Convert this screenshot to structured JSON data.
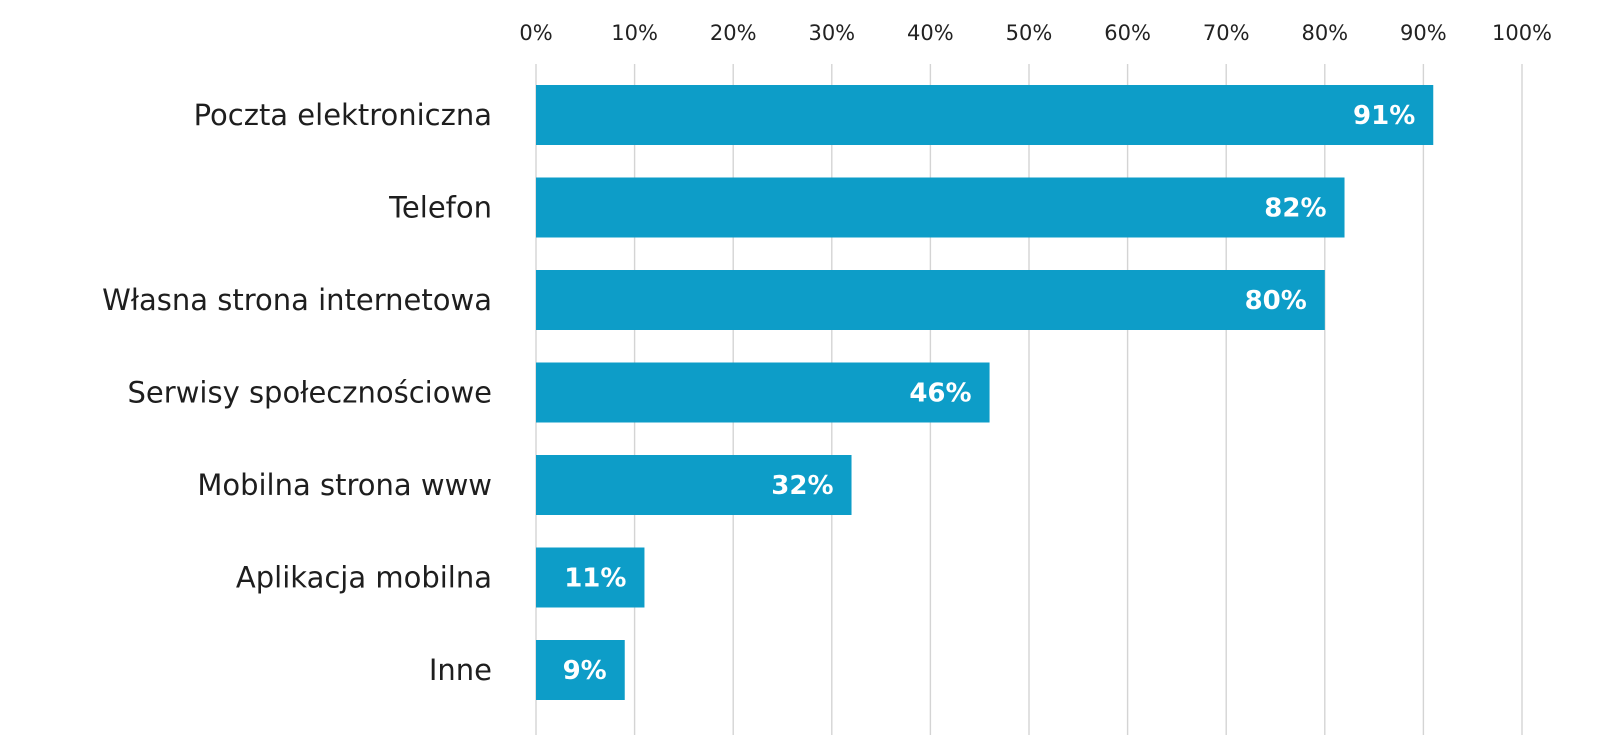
{
  "chart_data": {
    "type": "bar",
    "orientation": "horizontal",
    "title": "",
    "xlabel": "",
    "ylabel": "",
    "categories": [
      "Poczta elektroniczna",
      "Telefon",
      "Własna strona internetowa",
      "Serwisy społecznościowe",
      "Mobilna strona www",
      "Aplikacja mobilna",
      "Inne"
    ],
    "values": [
      91,
      82,
      80,
      46,
      32,
      11,
      9
    ],
    "data_labels": [
      "91%",
      "82%",
      "80%",
      "46%",
      "32%",
      "11%",
      "9%"
    ],
    "xlim": [
      0,
      100
    ],
    "x_ticks": [
      0,
      10,
      20,
      30,
      40,
      50,
      60,
      70,
      80,
      90,
      100
    ],
    "x_tick_labels": [
      "0%",
      "10%",
      "20%",
      "30%",
      "40%",
      "50%",
      "60%",
      "70%",
      "80%",
      "90%",
      "100%"
    ],
    "x_axis_position": "top",
    "grid": true,
    "legend": "none",
    "colors": {
      "bar": "#0d9dc8",
      "grid": "#d4d4d4",
      "label_text": "#ffffff",
      "axis_text": "#1e1e1e"
    }
  }
}
